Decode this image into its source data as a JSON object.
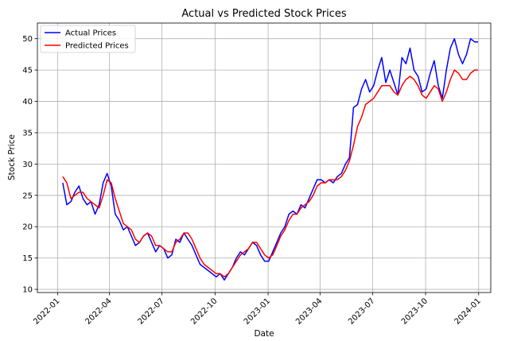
{
  "chart_data": {
    "type": "line",
    "title": "Actual vs Predicted Stock Prices",
    "xlabel": "Date",
    "ylabel": "Stock Price",
    "x_ticks": [
      "2022-01",
      "2022-04",
      "2022-07",
      "2022-10",
      "2023-01",
      "2023-04",
      "2023-07",
      "2023-10",
      "2024-01"
    ],
    "y_ticks": [
      10,
      15,
      20,
      25,
      30,
      35,
      40,
      45,
      50
    ],
    "xlim": [
      "2021-11-27",
      "2024-01-22"
    ],
    "ylim": [
      9.5,
      52.5
    ],
    "grid": true,
    "legend_position": "top-left",
    "series": [
      {
        "name": "Actual Prices",
        "color": "#0000ff",
        "points": [
          [
            "2022-01-10",
            27.0
          ],
          [
            "2022-01-17",
            23.5
          ],
          [
            "2022-01-24",
            24.0
          ],
          [
            "2022-01-31",
            25.5
          ],
          [
            "2022-02-07",
            26.5
          ],
          [
            "2022-02-14",
            24.5
          ],
          [
            "2022-02-21",
            23.5
          ],
          [
            "2022-02-28",
            24.0
          ],
          [
            "2022-03-07",
            22.0
          ],
          [
            "2022-03-14",
            23.5
          ],
          [
            "2022-03-21",
            27.0
          ],
          [
            "2022-03-28",
            28.5
          ],
          [
            "2022-04-04",
            26.5
          ],
          [
            "2022-04-11",
            22.0
          ],
          [
            "2022-04-18",
            21.0
          ],
          [
            "2022-04-25",
            19.5
          ],
          [
            "2022-05-02",
            20.0
          ],
          [
            "2022-05-09",
            18.5
          ],
          [
            "2022-05-16",
            17.0
          ],
          [
            "2022-05-23",
            17.5
          ],
          [
            "2022-05-30",
            18.5
          ],
          [
            "2022-06-06",
            19.0
          ],
          [
            "2022-06-13",
            17.5
          ],
          [
            "2022-06-20",
            16.0
          ],
          [
            "2022-06-27",
            17.0
          ],
          [
            "2022-07-04",
            16.5
          ],
          [
            "2022-07-11",
            15.0
          ],
          [
            "2022-07-18",
            15.5
          ],
          [
            "2022-07-25",
            18.0
          ],
          [
            "2022-08-01",
            17.5
          ],
          [
            "2022-08-08",
            19.0
          ],
          [
            "2022-08-15",
            18.0
          ],
          [
            "2022-08-22",
            17.0
          ],
          [
            "2022-08-29",
            15.5
          ],
          [
            "2022-09-05",
            14.0
          ],
          [
            "2022-09-12",
            13.5
          ],
          [
            "2022-09-19",
            13.0
          ],
          [
            "2022-09-26",
            12.5
          ],
          [
            "2022-10-03",
            12.0
          ],
          [
            "2022-10-10",
            12.5
          ],
          [
            "2022-10-17",
            11.5
          ],
          [
            "2022-10-24",
            12.5
          ],
          [
            "2022-10-31",
            13.5
          ],
          [
            "2022-11-07",
            15.0
          ],
          [
            "2022-11-14",
            16.0
          ],
          [
            "2022-11-21",
            15.5
          ],
          [
            "2022-11-28",
            16.5
          ],
          [
            "2022-12-05",
            17.5
          ],
          [
            "2022-12-12",
            17.0
          ],
          [
            "2022-12-19",
            15.5
          ],
          [
            "2022-12-26",
            14.5
          ],
          [
            "2023-01-02",
            14.5
          ],
          [
            "2023-01-09",
            16.0
          ],
          [
            "2023-01-16",
            17.5
          ],
          [
            "2023-01-23",
            19.0
          ],
          [
            "2023-01-30",
            20.0
          ],
          [
            "2023-02-06",
            22.0
          ],
          [
            "2023-02-13",
            22.5
          ],
          [
            "2023-02-20",
            22.0
          ],
          [
            "2023-02-27",
            23.5
          ],
          [
            "2023-03-06",
            23.0
          ],
          [
            "2023-03-13",
            24.5
          ],
          [
            "2023-03-20",
            26.0
          ],
          [
            "2023-03-27",
            27.5
          ],
          [
            "2023-04-03",
            27.5
          ],
          [
            "2023-04-10",
            27.0
          ],
          [
            "2023-04-17",
            27.5
          ],
          [
            "2023-04-24",
            27.0
          ],
          [
            "2023-05-01",
            28.0
          ],
          [
            "2023-05-08",
            28.5
          ],
          [
            "2023-05-15",
            30.0
          ],
          [
            "2023-05-22",
            31.0
          ],
          [
            "2023-05-29",
            39.0
          ],
          [
            "2023-06-05",
            39.5
          ],
          [
            "2023-06-12",
            42.0
          ],
          [
            "2023-06-19",
            43.5
          ],
          [
            "2023-06-26",
            41.5
          ],
          [
            "2023-07-03",
            42.5
          ],
          [
            "2023-07-10",
            45.0
          ],
          [
            "2023-07-17",
            47.0
          ],
          [
            "2023-07-24",
            43.0
          ],
          [
            "2023-07-31",
            45.0
          ],
          [
            "2023-08-07",
            43.0
          ],
          [
            "2023-08-14",
            41.0
          ],
          [
            "2023-08-21",
            47.0
          ],
          [
            "2023-08-28",
            46.0
          ],
          [
            "2023-09-04",
            48.5
          ],
          [
            "2023-09-11",
            45.0
          ],
          [
            "2023-09-18",
            44.0
          ],
          [
            "2023-09-25",
            41.5
          ],
          [
            "2023-10-02",
            42.0
          ],
          [
            "2023-10-09",
            44.5
          ],
          [
            "2023-10-16",
            46.5
          ],
          [
            "2023-10-23",
            42.5
          ],
          [
            "2023-10-30",
            40.5
          ],
          [
            "2023-11-06",
            45.0
          ],
          [
            "2023-11-13",
            48.5
          ],
          [
            "2023-11-20",
            50.0
          ],
          [
            "2023-11-27",
            47.5
          ],
          [
            "2023-12-04",
            46.0
          ],
          [
            "2023-12-11",
            47.5
          ],
          [
            "2023-12-18",
            50.0
          ],
          [
            "2023-12-25",
            49.5
          ],
          [
            "2023-12-31",
            49.5
          ]
        ]
      },
      {
        "name": "Predicted Prices",
        "color": "#ff0000",
        "points": [
          [
            "2022-01-10",
            28.0
          ],
          [
            "2022-01-17",
            27.0
          ],
          [
            "2022-01-24",
            24.5
          ],
          [
            "2022-01-31",
            25.0
          ],
          [
            "2022-02-07",
            25.5
          ],
          [
            "2022-02-14",
            25.5
          ],
          [
            "2022-02-21",
            24.5
          ],
          [
            "2022-02-28",
            24.0
          ],
          [
            "2022-03-07",
            23.5
          ],
          [
            "2022-03-14",
            23.0
          ],
          [
            "2022-03-21",
            25.0
          ],
          [
            "2022-03-28",
            27.5
          ],
          [
            "2022-04-04",
            27.0
          ],
          [
            "2022-04-11",
            24.5
          ],
          [
            "2022-04-18",
            22.5
          ],
          [
            "2022-04-25",
            20.5
          ],
          [
            "2022-05-02",
            20.0
          ],
          [
            "2022-05-09",
            19.5
          ],
          [
            "2022-05-16",
            18.0
          ],
          [
            "2022-05-23",
            17.5
          ],
          [
            "2022-05-30",
            18.5
          ],
          [
            "2022-06-06",
            19.0
          ],
          [
            "2022-06-13",
            18.5
          ],
          [
            "2022-06-20",
            17.0
          ],
          [
            "2022-06-27",
            17.0
          ],
          [
            "2022-07-04",
            16.5
          ],
          [
            "2022-07-11",
            16.0
          ],
          [
            "2022-07-18",
            16.0
          ],
          [
            "2022-07-25",
            17.5
          ],
          [
            "2022-08-01",
            18.0
          ],
          [
            "2022-08-08",
            19.0
          ],
          [
            "2022-08-15",
            19.0
          ],
          [
            "2022-08-22",
            18.0
          ],
          [
            "2022-08-29",
            16.5
          ],
          [
            "2022-09-05",
            15.0
          ],
          [
            "2022-09-12",
            14.0
          ],
          [
            "2022-09-19",
            13.5
          ],
          [
            "2022-09-26",
            13.0
          ],
          [
            "2022-10-03",
            12.5
          ],
          [
            "2022-10-10",
            12.5
          ],
          [
            "2022-10-17",
            12.0
          ],
          [
            "2022-10-24",
            12.5
          ],
          [
            "2022-10-31",
            13.5
          ],
          [
            "2022-11-07",
            14.5
          ],
          [
            "2022-11-14",
            15.5
          ],
          [
            "2022-11-21",
            16.0
          ],
          [
            "2022-11-28",
            16.5
          ],
          [
            "2022-12-05",
            17.5
          ],
          [
            "2022-12-12",
            17.5
          ],
          [
            "2022-12-19",
            16.5
          ],
          [
            "2022-12-26",
            15.5
          ],
          [
            "2023-01-02",
            15.0
          ],
          [
            "2023-01-09",
            15.5
          ],
          [
            "2023-01-16",
            17.0
          ],
          [
            "2023-01-23",
            18.5
          ],
          [
            "2023-01-30",
            19.5
          ],
          [
            "2023-02-06",
            21.0
          ],
          [
            "2023-02-13",
            22.0
          ],
          [
            "2023-02-20",
            22.0
          ],
          [
            "2023-02-27",
            23.0
          ],
          [
            "2023-03-06",
            23.5
          ],
          [
            "2023-03-13",
            24.0
          ],
          [
            "2023-03-20",
            25.0
          ],
          [
            "2023-03-27",
            26.5
          ],
          [
            "2023-04-03",
            27.0
          ],
          [
            "2023-04-10",
            27.0
          ],
          [
            "2023-04-17",
            27.5
          ],
          [
            "2023-04-24",
            27.5
          ],
          [
            "2023-05-01",
            27.5
          ],
          [
            "2023-05-08",
            28.0
          ],
          [
            "2023-05-15",
            29.0
          ],
          [
            "2023-05-22",
            30.5
          ],
          [
            "2023-05-29",
            33.0
          ],
          [
            "2023-06-05",
            36.0
          ],
          [
            "2023-06-12",
            37.5
          ],
          [
            "2023-06-19",
            39.5
          ],
          [
            "2023-06-26",
            40.0
          ],
          [
            "2023-07-03",
            40.5
          ],
          [
            "2023-07-10",
            41.5
          ],
          [
            "2023-07-17",
            42.5
          ],
          [
            "2023-07-24",
            42.5
          ],
          [
            "2023-07-31",
            42.5
          ],
          [
            "2023-08-07",
            41.5
          ],
          [
            "2023-08-14",
            41.0
          ],
          [
            "2023-08-21",
            42.5
          ],
          [
            "2023-08-28",
            43.5
          ],
          [
            "2023-09-04",
            44.0
          ],
          [
            "2023-09-11",
            43.5
          ],
          [
            "2023-09-18",
            42.5
          ],
          [
            "2023-09-25",
            41.0
          ],
          [
            "2023-10-02",
            40.5
          ],
          [
            "2023-10-09",
            41.5
          ],
          [
            "2023-10-16",
            42.5
          ],
          [
            "2023-10-23",
            42.0
          ],
          [
            "2023-10-30",
            40.0
          ],
          [
            "2023-11-06",
            41.5
          ],
          [
            "2023-11-13",
            43.5
          ],
          [
            "2023-11-20",
            45.0
          ],
          [
            "2023-11-27",
            44.5
          ],
          [
            "2023-12-04",
            43.5
          ],
          [
            "2023-12-11",
            43.5
          ],
          [
            "2023-12-18",
            44.5
          ],
          [
            "2023-12-25",
            45.0
          ],
          [
            "2023-12-31",
            45.0
          ]
        ]
      }
    ]
  }
}
